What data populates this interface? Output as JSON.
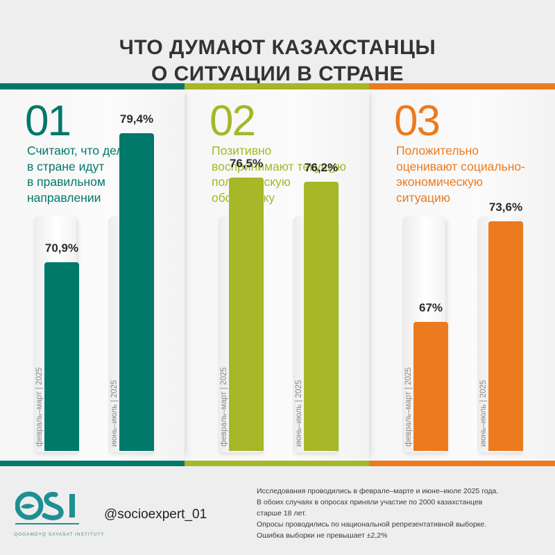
{
  "title": {
    "line1": "ЧТО ДУМАЮТ КАЗАХСТАНЦЫ",
    "line2": "О СИТУАЦИИ В СТРАНЕ"
  },
  "colors": {
    "teal": "#00786a",
    "olive": "#a6b727",
    "orange": "#ec7b1f",
    "background": "#eeeeee"
  },
  "chart_data": {
    "type": "bar",
    "ylim": [
      0,
      100
    ],
    "categories": [
      "февраль–март | 2025",
      "июнь–июль | 2025"
    ],
    "groups": [
      {
        "number": "01",
        "label_lines": [
          "Считают, что дела",
          "в стране идут",
          "в правильном",
          "направлении"
        ],
        "color": "#00786a",
        "values": [
          70.9,
          79.4
        ],
        "value_labels": [
          "70,9%",
          "79,4%"
        ]
      },
      {
        "number": "02",
        "label_lines": [
          "Позитивно",
          "воспринимают текущую",
          "политическую",
          "обстановку"
        ],
        "color": "#a6b727",
        "values": [
          76.5,
          76.2
        ],
        "value_labels": [
          "76,5%",
          "76,2%"
        ]
      },
      {
        "number": "03",
        "label_lines": [
          "Положительно",
          "оценивают социально-",
          "экономическую",
          "ситуацию"
        ],
        "color": "#ec7b1f",
        "values": [
          67,
          73.6
        ],
        "value_labels": [
          "67%",
          "73,6%"
        ]
      }
    ]
  },
  "footer": {
    "logo_text": "QOGAMDYQ SAYASAT INSTITUTY",
    "logo_icon": "osi-logo-icon",
    "handle": "@socioexpert_01",
    "notes": [
      "Исследования проводились в феврале–марте и июне–июле 2025 года.",
      "В обоих случаях в опросах приняли участие по 2000 казахстанцев",
      "старше 18 лет.",
      "Опросы проводились по национальной репрезентативной выборке.",
      "Ошибка выборки не превышает  ±2,2%"
    ]
  }
}
